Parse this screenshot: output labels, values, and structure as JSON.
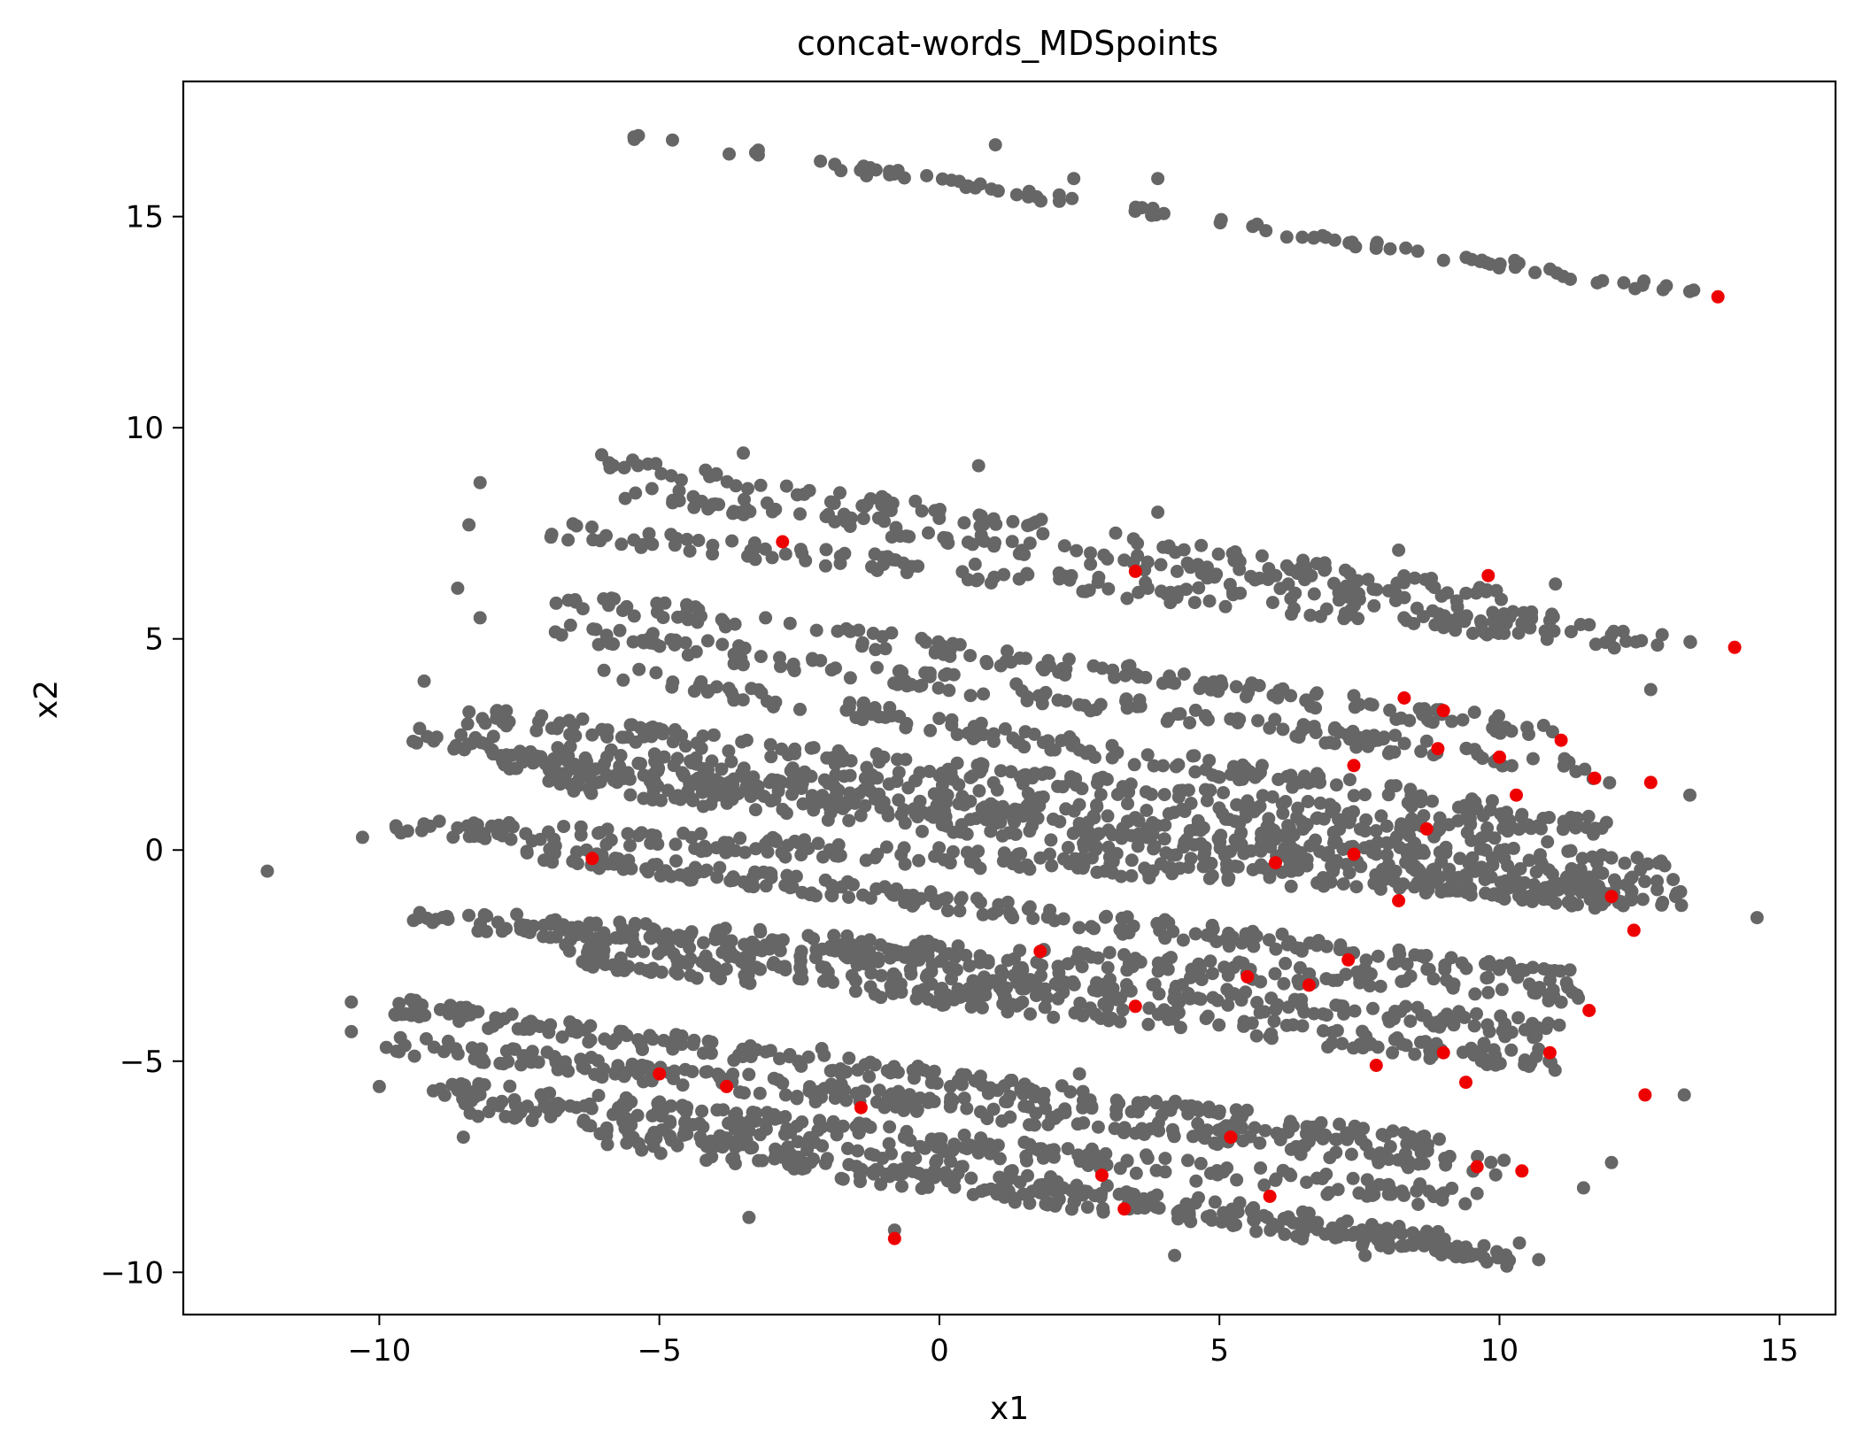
{
  "chart_data": {
    "type": "scatter",
    "title": "concat-words_MDSpoints",
    "xlabel": "x1",
    "ylabel": "x2",
    "xlim": [
      -13.5,
      16
    ],
    "ylim": [
      -11,
      18.2
    ],
    "x_ticks": [
      -10,
      -5,
      0,
      5,
      10,
      15
    ],
    "x_tick_labels": [
      "−10",
      "−5",
      "0",
      "5",
      "10",
      "15"
    ],
    "y_ticks": [
      -10,
      -5,
      0,
      5,
      10,
      15
    ],
    "y_tick_labels": [
      "−10",
      "−5",
      "0",
      "5",
      "10",
      "15"
    ],
    "grid": false,
    "legend": "none",
    "colors": {
      "base": "#666666",
      "highlight": "#ee0000"
    },
    "series": [
      {
        "color": "#666666",
        "bands": [
          {
            "x_start": -5.5,
            "x_end": 13.5,
            "y_start": 16.9,
            "y_end": 13.2,
            "count": 95,
            "spread": 0.12
          },
          {
            "x_start": -6.0,
            "x_end": 10.0,
            "y_start": 9.2,
            "y_end": 6.0,
            "count": 110,
            "spread": 0.18
          },
          {
            "x_start": -5.5,
            "x_end": 12.0,
            "y_start": 8.5,
            "y_end": 5.2,
            "count": 130,
            "spread": 0.2
          },
          {
            "x_start": -7.0,
            "x_end": 13.5,
            "y_start": 7.6,
            "y_end": 4.8,
            "count": 150,
            "spread": 0.22
          },
          {
            "x_start": -6.8,
            "x_end": 11.0,
            "y_start": 6.0,
            "y_end": 2.8,
            "count": 150,
            "spread": 0.22
          },
          {
            "x_start": -6.8,
            "x_end": 12.0,
            "y_start": 5.2,
            "y_end": 1.8,
            "count": 160,
            "spread": 0.22
          },
          {
            "x_start": -6.0,
            "x_end": 12.0,
            "y_start": 4.2,
            "y_end": 0.5,
            "count": 170,
            "spread": 0.22
          },
          {
            "x_start": -8.5,
            "x_end": 11.0,
            "y_start": 3.2,
            "y_end": 0.3,
            "count": 200,
            "spread": 0.22
          },
          {
            "x_start": -9.5,
            "x_end": 13.0,
            "y_start": 2.7,
            "y_end": -0.5,
            "count": 220,
            "spread": 0.25
          },
          {
            "x_start": -8.0,
            "x_end": 12.5,
            "y_start": 2.2,
            "y_end": -0.9,
            "count": 230,
            "spread": 0.25
          },
          {
            "x_start": -7.0,
            "x_end": 12.0,
            "y_start": 1.7,
            "y_end": -1.2,
            "count": 200,
            "spread": 0.25
          },
          {
            "x_start": -9.8,
            "x_end": 13.5,
            "y_start": 0.6,
            "y_end": -1.2,
            "count": 230,
            "spread": 0.22
          },
          {
            "x_start": -7.5,
            "x_end": 11.5,
            "y_start": 0.0,
            "y_end": -3.1,
            "count": 230,
            "spread": 0.22
          },
          {
            "x_start": -9.5,
            "x_end": 11.5,
            "y_start": -1.6,
            "y_end": -3.4,
            "count": 220,
            "spread": 0.25
          },
          {
            "x_start": -7.5,
            "x_end": 11.0,
            "y_start": -1.9,
            "y_end": -4.3,
            "count": 220,
            "spread": 0.25
          },
          {
            "x_start": -6.5,
            "x_end": 11.0,
            "y_start": -2.5,
            "y_end": -5.0,
            "count": 210,
            "spread": 0.25
          },
          {
            "x_start": -9.8,
            "x_end": 9.0,
            "y_start": -3.7,
            "y_end": -7.0,
            "count": 230,
            "spread": 0.22
          },
          {
            "x_start": -9.8,
            "x_end": 10.0,
            "y_start": -4.6,
            "y_end": -7.5,
            "count": 230,
            "spread": 0.25
          },
          {
            "x_start": -9.0,
            "x_end": 9.5,
            "y_start": -5.6,
            "y_end": -8.3,
            "count": 220,
            "spread": 0.25
          },
          {
            "x_start": -8.5,
            "x_end": 9.5,
            "y_start": -6.0,
            "y_end": -9.4,
            "count": 200,
            "spread": 0.28
          },
          {
            "x_start": -6.0,
            "x_end": 10.5,
            "y_start": -6.8,
            "y_end": -9.6,
            "count": 170,
            "spread": 0.3
          }
        ],
        "points": [
          [
            -12.0,
            -0.5
          ],
          [
            14.6,
            -1.6
          ],
          [
            -8.2,
            8.7
          ],
          [
            -8.4,
            7.7
          ],
          [
            -8.6,
            6.2
          ],
          [
            -8.2,
            5.5
          ],
          [
            -9.2,
            4.0
          ],
          [
            -10.5,
            -4.3
          ],
          [
            -10.5,
            -3.6
          ],
          [
            -10.0,
            -5.6
          ],
          [
            -8.5,
            -6.8
          ],
          [
            -3.4,
            -8.7
          ],
          [
            -0.8,
            -9.0
          ],
          [
            4.2,
            -9.6
          ],
          [
            7.6,
            -9.6
          ],
          [
            10.7,
            -9.7
          ],
          [
            12.7,
            3.8
          ],
          [
            13.4,
            1.3
          ],
          [
            13.3,
            -5.8
          ],
          [
            11.0,
            6.3
          ],
          [
            0.7,
            9.1
          ],
          [
            -3.5,
            9.4
          ],
          [
            -10.3,
            0.3
          ],
          [
            3.9,
            8.0
          ],
          [
            1.0,
            16.7
          ],
          [
            3.9,
            15.9
          ],
          [
            2.4,
            15.9
          ],
          [
            -6.3,
            0.0
          ],
          [
            -4.6,
            -4.6
          ],
          [
            -2.1,
            -4.7
          ],
          [
            2.5,
            -5.3
          ],
          [
            6.6,
            -8.6
          ],
          [
            11.5,
            -8.0
          ],
          [
            12.0,
            -7.4
          ],
          [
            8.2,
            7.1
          ],
          [
            12.0,
            5.1
          ],
          [
            13.1,
            -0.7
          ],
          [
            9.4,
            -9.4
          ],
          [
            11.7,
            -0.8
          ],
          [
            9.1,
            0.6
          ]
        ]
      },
      {
        "color": "#ee0000",
        "points": [
          [
            13.9,
            13.1
          ],
          [
            14.2,
            4.8
          ],
          [
            9.8,
            6.5
          ],
          [
            3.5,
            6.6
          ],
          [
            12.7,
            1.6
          ],
          [
            11.7,
            1.7
          ],
          [
            10.3,
            1.3
          ],
          [
            9.0,
            3.3
          ],
          [
            8.3,
            3.6
          ],
          [
            11.1,
            2.6
          ],
          [
            10.0,
            2.2
          ],
          [
            8.9,
            2.4
          ],
          [
            7.4,
            2.0
          ],
          [
            8.7,
            0.5
          ],
          [
            12.4,
            -1.9
          ],
          [
            12.0,
            -1.1
          ],
          [
            8.2,
            -1.2
          ],
          [
            7.4,
            -0.1
          ],
          [
            6.0,
            -0.3
          ],
          [
            -6.2,
            -0.2
          ],
          [
            11.6,
            -3.8
          ],
          [
            9.0,
            -4.8
          ],
          [
            10.9,
            -4.8
          ],
          [
            7.8,
            -5.1
          ],
          [
            9.4,
            -5.5
          ],
          [
            12.6,
            -5.8
          ],
          [
            10.4,
            -7.6
          ],
          [
            9.6,
            -7.5
          ],
          [
            5.9,
            -8.2
          ],
          [
            -0.8,
            -9.2
          ],
          [
            3.3,
            -8.5
          ],
          [
            -1.4,
            -6.1
          ],
          [
            -5.0,
            -5.3
          ],
          [
            -3.8,
            -5.6
          ],
          [
            1.8,
            -2.4
          ],
          [
            5.5,
            -3.0
          ],
          [
            6.6,
            -3.2
          ],
          [
            3.5,
            -3.7
          ],
          [
            -2.8,
            7.3
          ],
          [
            5.2,
            -6.8
          ],
          [
            2.9,
            -7.7
          ],
          [
            7.3,
            -2.6
          ]
        ]
      }
    ]
  }
}
